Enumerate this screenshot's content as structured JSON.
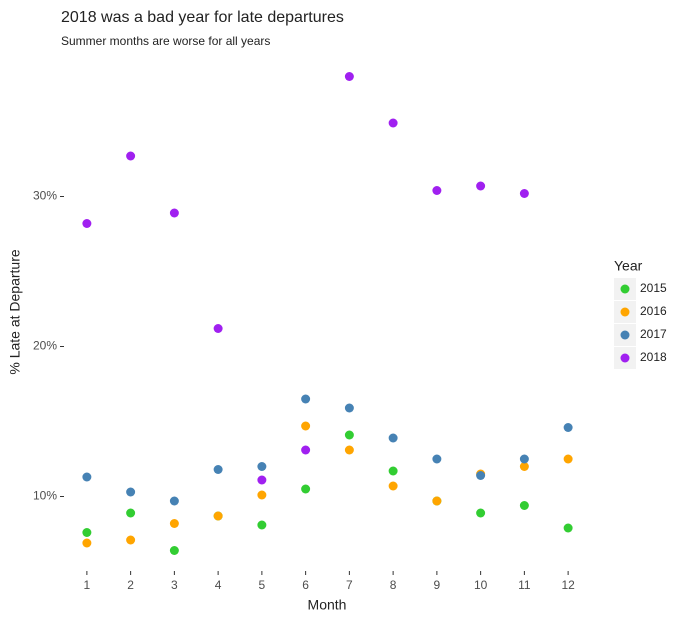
{
  "chart_data": {
    "type": "scatter",
    "title": "2018 was a bad year for late departures",
    "subtitle": "Summer months are worse for all years",
    "x_label": "Month",
    "y_label": "% Late at Departure",
    "legend_title": "Year",
    "legend": "right",
    "grid": false,
    "x": [
      1,
      2,
      3,
      4,
      5,
      6,
      7,
      8,
      9,
      10,
      11,
      12
    ],
    "xlim": [
      0.5,
      12.5
    ],
    "xticks": [
      1,
      2,
      3,
      4,
      5,
      6,
      7,
      8,
      9,
      10,
      11,
      12
    ],
    "ylim": [
      5.1,
      39.1
    ],
    "yticks": [
      {
        "value": 10,
        "label": "10%"
      },
      {
        "value": 20,
        "label": "20%"
      },
      {
        "value": 30,
        "label": "30%"
      }
    ],
    "series": [
      {
        "name": "2015",
        "color": "#32cd32",
        "values": [
          7.6,
          8.9,
          6.4,
          8.7,
          8.1,
          10.5,
          14.1,
          11.7,
          9.7,
          8.9,
          9.4,
          7.9
        ]
      },
      {
        "name": "2016",
        "color": "#ffa500",
        "values": [
          6.9,
          7.1,
          8.2,
          8.7,
          10.1,
          14.7,
          13.1,
          10.7,
          9.7,
          11.5,
          12.0,
          12.5
        ]
      },
      {
        "name": "2017",
        "color": "#4682b4",
        "values": [
          11.3,
          10.3,
          9.7,
          11.8,
          12.0,
          16.5,
          15.9,
          13.9,
          12.5,
          11.4,
          12.5,
          14.6
        ]
      },
      {
        "name": "2018",
        "color": "#a020f0",
        "values": [
          28.2,
          32.7,
          28.9,
          21.2,
          11.1,
          13.1,
          38.0,
          34.9,
          30.4,
          30.7,
          30.2,
          null
        ]
      }
    ]
  }
}
